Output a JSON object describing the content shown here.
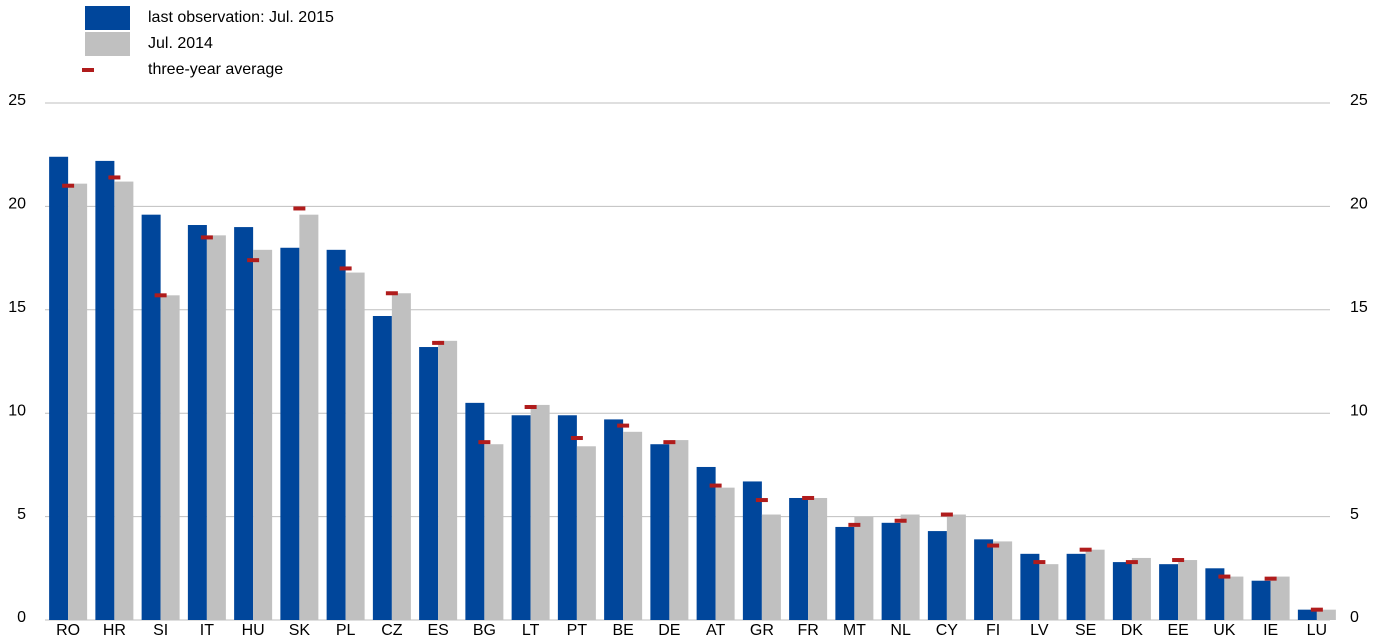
{
  "chart_data": {
    "type": "bar",
    "categories": [
      "RO",
      "HR",
      "SI",
      "IT",
      "HU",
      "SK",
      "PL",
      "CZ",
      "ES",
      "BG",
      "LT",
      "PT",
      "BE",
      "DE",
      "AT",
      "GR",
      "FR",
      "MT",
      "NL",
      "CY",
      "FI",
      "LV",
      "SE",
      "DK",
      "EE",
      "UK",
      "IE",
      "LU"
    ],
    "series": [
      {
        "name": "last observation: Jul. 2015",
        "color": "#00469b",
        "kind": "bar",
        "values": [
          22.4,
          22.2,
          19.6,
          19.1,
          19.0,
          18.0,
          17.9,
          14.7,
          13.2,
          10.5,
          9.9,
          9.9,
          9.7,
          8.5,
          7.4,
          6.7,
          5.9,
          4.5,
          4.7,
          4.3,
          3.9,
          3.2,
          3.2,
          2.8,
          2.7,
          2.5,
          1.9,
          0.5
        ]
      },
      {
        "name": "Jul. 2014",
        "color": "#c0c0c0",
        "kind": "bar",
        "values": [
          21.1,
          21.2,
          15.7,
          18.6,
          17.9,
          19.6,
          16.8,
          15.8,
          13.5,
          8.5,
          10.4,
          8.4,
          9.1,
          8.7,
          6.4,
          5.1,
          5.9,
          5.0,
          5.1,
          5.1,
          3.8,
          2.7,
          3.4,
          3.0,
          2.9,
          2.1,
          2.1,
          0.5
        ]
      },
      {
        "name": "three-year average",
        "color": "#b01c1c",
        "kind": "marker",
        "values": [
          21.0,
          21.4,
          15.7,
          18.5,
          17.4,
          19.9,
          17.0,
          15.8,
          13.4,
          8.6,
          10.3,
          8.8,
          9.4,
          8.6,
          6.5,
          5.8,
          5.9,
          4.6,
          4.8,
          5.1,
          3.6,
          2.8,
          3.4,
          2.8,
          2.9,
          2.1,
          2.0,
          0.5
        ]
      }
    ],
    "ylim": [
      0,
      25
    ],
    "yticks": [
      0,
      5,
      10,
      15,
      20,
      25
    ],
    "grid": true,
    "legend": "top-left"
  }
}
